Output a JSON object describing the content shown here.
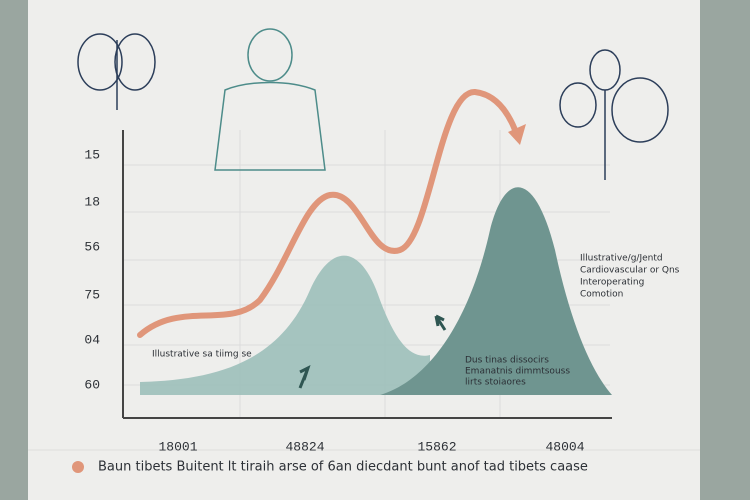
{
  "y_labels": [
    "15",
    "18",
    "56",
    "75",
    "04",
    "60"
  ],
  "x_labels": [
    "18001",
    "48824",
    "15862",
    "48004"
  ],
  "annotations": {
    "left": "Illustrative sa tiimg se",
    "middle": [
      "Dus tinas dissocirs",
      "Emanatnis dimmtsouss",
      "lirts stoiaores"
    ],
    "right": [
      "Illustrative/g/Jentd",
      "Cardiovascular or Qns",
      "Interoperating",
      "Comotion"
    ]
  },
  "caption": "Baun tibets Buitent lt tiraih arse of 6an diecdant bunt anof tad tibets caase"
}
